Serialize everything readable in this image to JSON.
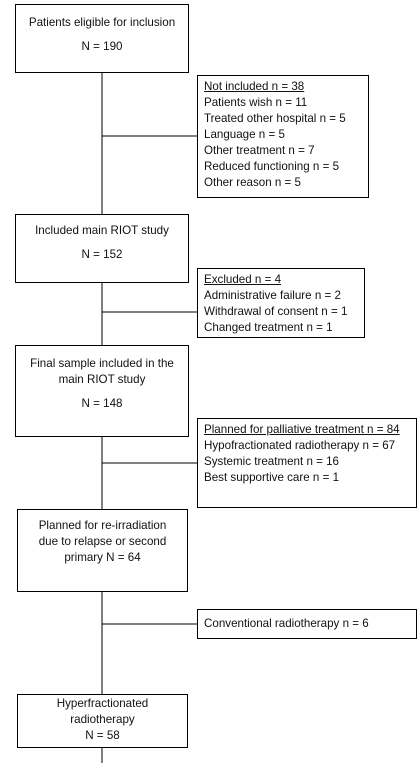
{
  "boxes": {
    "eligible": {
      "title": "Patients eligible for inclusion",
      "n": "N = 190"
    },
    "not_included": {
      "heading": "Not included n = 38",
      "items": [
        "Patients wish n = 11",
        "Treated other hospital n = 5",
        "Language n = 5",
        "Other treatment n = 7",
        "Reduced functioning n = 5",
        "Other reason n = 5"
      ]
    },
    "included": {
      "title": "Included main RIOT study",
      "n": "N = 152"
    },
    "excluded": {
      "heading": "Excluded n = 4",
      "items": [
        "Administrative failure n = 2",
        "Withdrawal of consent n = 1",
        "Changed treatment n = 1"
      ]
    },
    "final": {
      "title_line1": "Final sample included in the",
      "title_line2": "main RIOT study",
      "n": "N = 148"
    },
    "palliative": {
      "heading": "Planned for palliative treatment n = 84",
      "items": [
        "Hypofractionated radiotherapy n = 67",
        "Systemic treatment n = 16",
        "Best supportive care n = 1"
      ]
    },
    "reirradiation": {
      "line1": "Planned for re-irradiation",
      "line2": "due to relapse or second",
      "line3": "primary N = 64"
    },
    "conventional": {
      "text": "Conventional radiotherapy n = 6"
    },
    "hyperfractionated": {
      "line1": "Hyperfractionated",
      "line2": "radiotherapy",
      "n": "N = 58"
    }
  }
}
